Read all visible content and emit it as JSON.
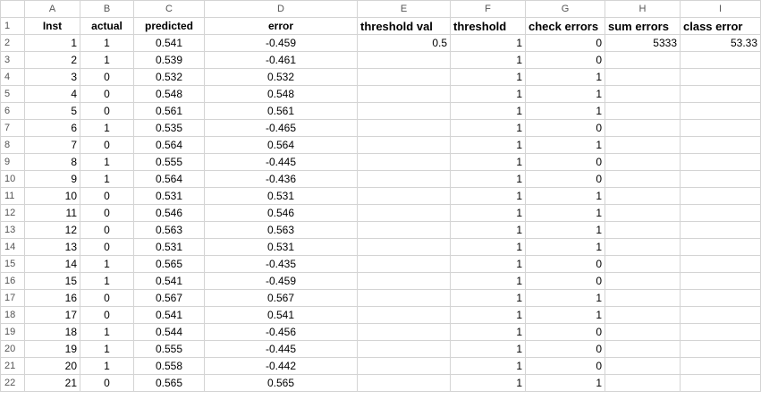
{
  "columns": [
    "A",
    "B",
    "C",
    "D",
    "E",
    "F",
    "G",
    "H",
    "I"
  ],
  "header_row": {
    "row_num": "1",
    "inst": "Inst",
    "actual": "actual",
    "predicted": "predicted",
    "error": "error",
    "threshold_val": "threshold val",
    "threshold": "threshold",
    "check_errors": "check errors",
    "sum_errors": "sum errors",
    "class_error": "class error"
  },
  "summary": {
    "threshold_val": "0.5",
    "sum_errors": "5333",
    "class_error": "53.33"
  },
  "rows": [
    {
      "row": "2",
      "inst": "1",
      "actual": "1",
      "predicted": "0.541",
      "error": "-0.459",
      "threshold": "1",
      "check": "0"
    },
    {
      "row": "3",
      "inst": "2",
      "actual": "1",
      "predicted": "0.539",
      "error": "-0.461",
      "threshold": "1",
      "check": "0"
    },
    {
      "row": "4",
      "inst": "3",
      "actual": "0",
      "predicted": "0.532",
      "error": "0.532",
      "threshold": "1",
      "check": "1"
    },
    {
      "row": "5",
      "inst": "4",
      "actual": "0",
      "predicted": "0.548",
      "error": "0.548",
      "threshold": "1",
      "check": "1"
    },
    {
      "row": "6",
      "inst": "5",
      "actual": "0",
      "predicted": "0.561",
      "error": "0.561",
      "threshold": "1",
      "check": "1"
    },
    {
      "row": "7",
      "inst": "6",
      "actual": "1",
      "predicted": "0.535",
      "error": "-0.465",
      "threshold": "1",
      "check": "0"
    },
    {
      "row": "8",
      "inst": "7",
      "actual": "0",
      "predicted": "0.564",
      "error": "0.564",
      "threshold": "1",
      "check": "1"
    },
    {
      "row": "9",
      "inst": "8",
      "actual": "1",
      "predicted": "0.555",
      "error": "-0.445",
      "threshold": "1",
      "check": "0"
    },
    {
      "row": "10",
      "inst": "9",
      "actual": "1",
      "predicted": "0.564",
      "error": "-0.436",
      "threshold": "1",
      "check": "0"
    },
    {
      "row": "11",
      "inst": "10",
      "actual": "0",
      "predicted": "0.531",
      "error": "0.531",
      "threshold": "1",
      "check": "1"
    },
    {
      "row": "12",
      "inst": "11",
      "actual": "0",
      "predicted": "0.546",
      "error": "0.546",
      "threshold": "1",
      "check": "1"
    },
    {
      "row": "13",
      "inst": "12",
      "actual": "0",
      "predicted": "0.563",
      "error": "0.563",
      "threshold": "1",
      "check": "1"
    },
    {
      "row": "14",
      "inst": "13",
      "actual": "0",
      "predicted": "0.531",
      "error": "0.531",
      "threshold": "1",
      "check": "1"
    },
    {
      "row": "15",
      "inst": "14",
      "actual": "1",
      "predicted": "0.565",
      "error": "-0.435",
      "threshold": "1",
      "check": "0"
    },
    {
      "row": "16",
      "inst": "15",
      "actual": "1",
      "predicted": "0.541",
      "error": "-0.459",
      "threshold": "1",
      "check": "0"
    },
    {
      "row": "17",
      "inst": "16",
      "actual": "0",
      "predicted": "0.567",
      "error": "0.567",
      "threshold": "1",
      "check": "1"
    },
    {
      "row": "18",
      "inst": "17",
      "actual": "0",
      "predicted": "0.541",
      "error": "0.541",
      "threshold": "1",
      "check": "1"
    },
    {
      "row": "19",
      "inst": "18",
      "actual": "1",
      "predicted": "0.544",
      "error": "-0.456",
      "threshold": "1",
      "check": "0"
    },
    {
      "row": "20",
      "inst": "19",
      "actual": "1",
      "predicted": "0.555",
      "error": "-0.445",
      "threshold": "1",
      "check": "0"
    },
    {
      "row": "21",
      "inst": "20",
      "actual": "1",
      "predicted": "0.558",
      "error": "-0.442",
      "threshold": "1",
      "check": "0"
    },
    {
      "row": "22",
      "inst": "21",
      "actual": "0",
      "predicted": "0.565",
      "error": "0.565",
      "threshold": "1",
      "check": "1"
    }
  ]
}
